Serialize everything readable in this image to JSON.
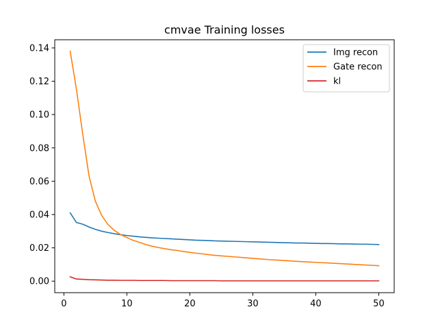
{
  "chart_data": {
    "type": "line",
    "title": "cmvae Training losses",
    "xlabel": "",
    "ylabel": "",
    "xlim": [
      -1.45,
      52.45
    ],
    "ylim": [
      -0.0069,
      0.1449
    ],
    "xticks": [
      0,
      10,
      20,
      30,
      40,
      50
    ],
    "yticks": [
      0.0,
      0.02,
      0.04,
      0.06,
      0.08,
      0.1,
      0.12,
      0.14
    ],
    "ytick_labels": [
      "0.00",
      "0.02",
      "0.04",
      "0.06",
      "0.08",
      "0.10",
      "0.12",
      "0.14"
    ],
    "grid": false,
    "legend_position": "top-right",
    "x": [
      1,
      2,
      3,
      4,
      5,
      6,
      7,
      8,
      9,
      10,
      11,
      12,
      13,
      14,
      15,
      16,
      17,
      18,
      19,
      20,
      21,
      22,
      23,
      24,
      25,
      26,
      27,
      28,
      29,
      30,
      31,
      32,
      33,
      34,
      35,
      36,
      37,
      38,
      39,
      40,
      41,
      42,
      43,
      44,
      45,
      46,
      47,
      48,
      49,
      50
    ],
    "series": [
      {
        "name": "Img recon",
        "color": "#1f77b4",
        "values": [
          0.041,
          0.0352,
          0.0342,
          0.0325,
          0.0311,
          0.03,
          0.0292,
          0.0285,
          0.0279,
          0.0274,
          0.027,
          0.0266,
          0.0263,
          0.026,
          0.0258,
          0.0256,
          0.0254,
          0.0252,
          0.025,
          0.0248,
          0.0246,
          0.0245,
          0.0244,
          0.0242,
          0.0241,
          0.024,
          0.0239,
          0.0238,
          0.0237,
          0.0236,
          0.0235,
          0.0234,
          0.0233,
          0.0232,
          0.0231,
          0.023,
          0.0229,
          0.0229,
          0.0228,
          0.0227,
          0.0226,
          0.0226,
          0.0225,
          0.0224,
          0.0224,
          0.0223,
          0.0222,
          0.0222,
          0.0221,
          0.022
        ]
      },
      {
        "name": "Gate recon",
        "color": "#ff7f0e",
        "values": [
          0.138,
          0.115,
          0.088,
          0.063,
          0.048,
          0.0395,
          0.034,
          0.0305,
          0.028,
          0.0262,
          0.0245,
          0.0233,
          0.022,
          0.021,
          0.0202,
          0.0195,
          0.0189,
          0.0184,
          0.0178,
          0.0173,
          0.0168,
          0.0164,
          0.0159,
          0.0155,
          0.0152,
          0.0149,
          0.0146,
          0.0143,
          0.014,
          0.0137,
          0.0134,
          0.0131,
          0.0128,
          0.0126,
          0.0124,
          0.0121,
          0.0119,
          0.0117,
          0.0115,
          0.0113,
          0.0111,
          0.0109,
          0.0107,
          0.0105,
          0.0103,
          0.0101,
          0.0099,
          0.0097,
          0.0095,
          0.0093
        ]
      },
      {
        "name": "kl",
        "color": "#d62728",
        "values": [
          0.0026,
          0.0013,
          0.0011,
          0.0009,
          0.0008,
          0.0007,
          0.0006,
          0.0006,
          0.0005,
          0.0005,
          0.0005,
          0.0004,
          0.0004,
          0.0004,
          0.0004,
          0.0004,
          0.0003,
          0.0003,
          0.0003,
          0.0003,
          0.0003,
          0.0003,
          0.0003,
          0.0003,
          0.0002,
          0.0002,
          0.0002,
          0.0002,
          0.0002,
          0.0002,
          0.0002,
          0.0002,
          0.0002,
          0.0002,
          0.0002,
          0.0002,
          0.0002,
          0.0002,
          0.0002,
          0.0002,
          0.0002,
          0.0002,
          0.0002,
          0.0002,
          0.0002,
          0.0002,
          0.0002,
          0.0002,
          0.0002,
          0.0002
        ]
      }
    ]
  }
}
